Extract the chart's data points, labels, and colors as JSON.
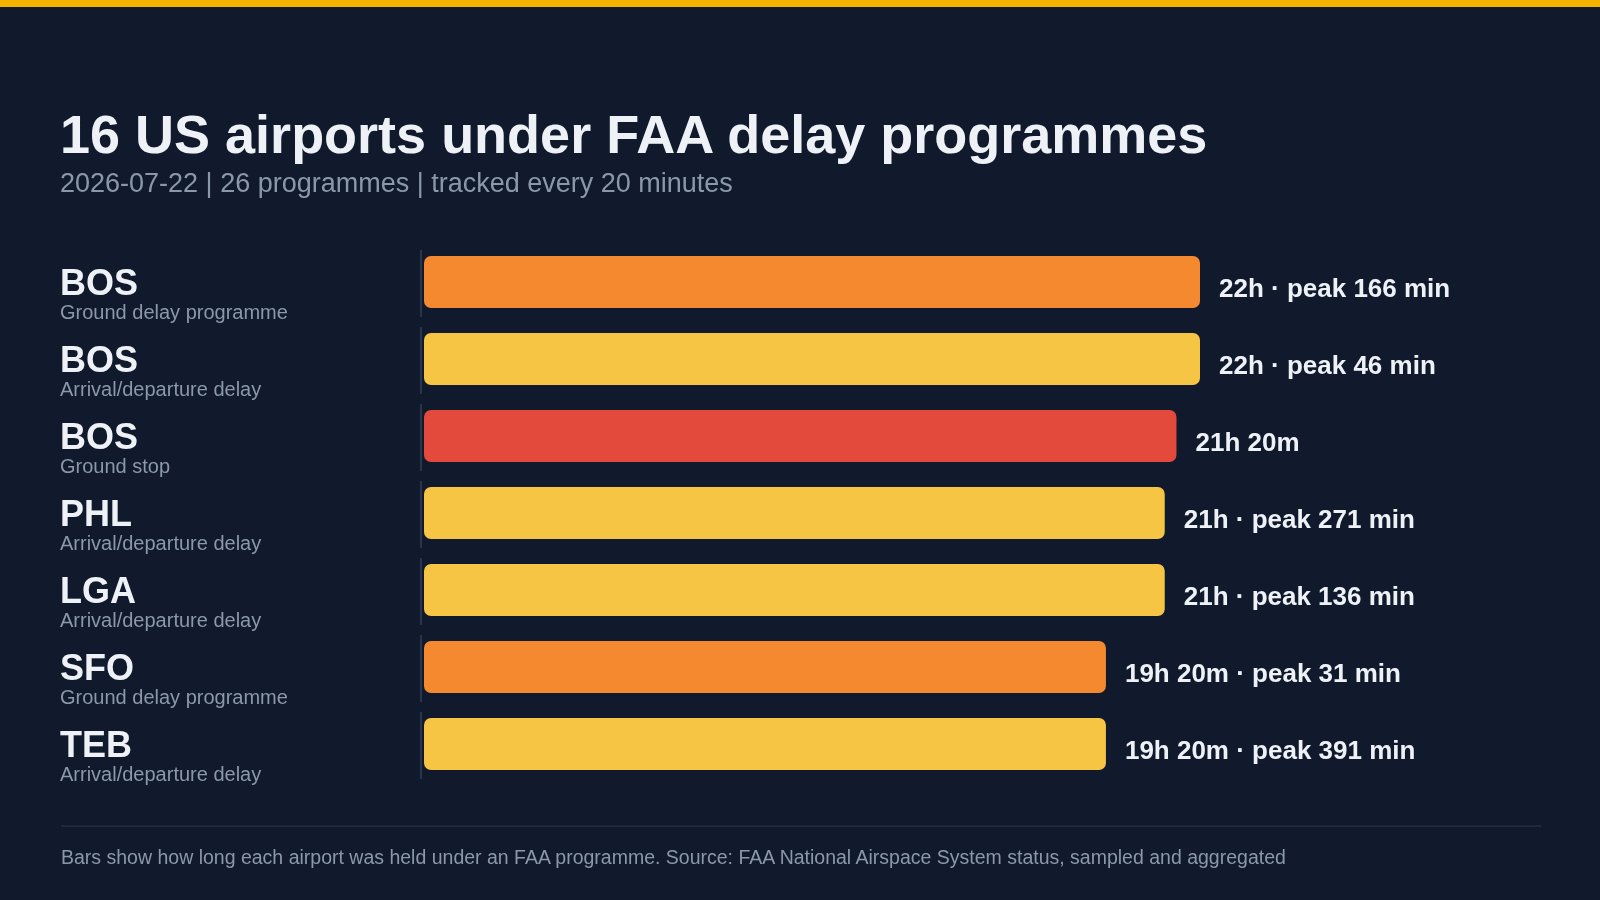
{
  "chart_data": {
    "type": "bar",
    "orientation": "horizontal",
    "title": "16 US airports under FAA delay programmes",
    "subtitle": "2026-07-22 | 26 programmes | tracked every 20 minutes",
    "categories": [
      "BOS\nGround delay programme",
      "BOS\nArrival/departure delay",
      "BOS\nGround stop",
      "PHL\nArrival/departure delay",
      "LGA\nArrival/departure delay",
      "SFO\nGround delay programme",
      "TEB\nArrival/departure delay"
    ],
    "values": [
      22,
      22,
      21.333,
      21,
      21,
      19.333,
      19.333
    ],
    "colors": [
      "#f5892f",
      "#f5c543",
      "#e34a3c",
      "#f5c543",
      "#f5c543",
      "#f5892f",
      "#f5c543"
    ],
    "value_labels": [
      "22h · peak 166 min",
      "22h · peak 46 min",
      "21h 20m",
      "21h · peak 271 min",
      "21h · peak 136 min",
      "19h 20m · peak 31 min",
      "19h 20m · peak 391 min"
    ],
    "grid": "x",
    "annotations": [
      "Bars show how long each airport was held under an FAA programme. Source: FAA National Airspace System status, sampled and aggregated"
    ]
  }
}
